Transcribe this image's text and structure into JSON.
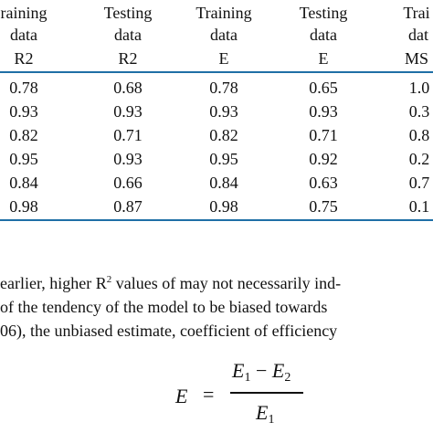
{
  "table": {
    "header_line1": [
      "raining",
      "Testing",
      "Training",
      "Testing",
      "Trai"
    ],
    "header_line2": [
      "data",
      "data",
      "data",
      "data",
      "dat"
    ],
    "header_line3": [
      "R2",
      "R2",
      "E",
      "E",
      "MS"
    ],
    "rows": [
      [
        "0.78",
        "0.68",
        "0.78",
        "0.65",
        "1.0"
      ],
      [
        "0.93",
        "0.93",
        "0.93",
        "0.93",
        "0.3"
      ],
      [
        "0.82",
        "0.71",
        "0.82",
        "0.71",
        "0.8"
      ],
      [
        "0.95",
        "0.93",
        "0.95",
        "0.92",
        "0.2"
      ],
      [
        "0.84",
        "0.66",
        "0.84",
        "0.63",
        "0.7"
      ],
      [
        "0.98",
        "0.87",
        "0.98",
        "0.75",
        "0.1"
      ]
    ]
  },
  "paragraph": {
    "line1_a": "earlier, higher R",
    "line1_sup": "2",
    "line1_b": " values of may not necessarily ind-",
    "line2": "of the tendency of the model to be biased towards",
    "line3": "06), the unbiased estimate, coefficient of efficiency"
  },
  "equation": {
    "lhs": "E",
    "equals": "=",
    "num_e1": "E",
    "num_sub1": "1",
    "minus": "−",
    "num_e2": "E",
    "num_sub2": "2",
    "den_e": "E",
    "den_sub": "1"
  }
}
